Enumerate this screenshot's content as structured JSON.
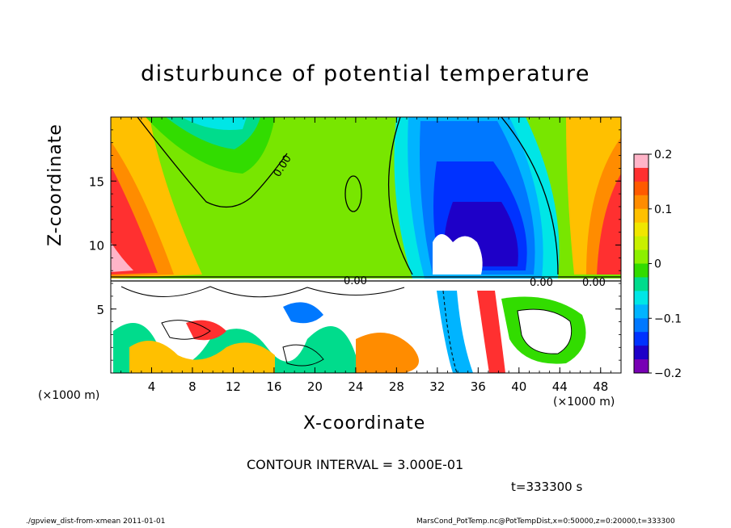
{
  "chart_data": {
    "type": "heatmap",
    "title": "disturbunce of potential temperature",
    "xlabel": "X-coordinate",
    "ylabel": "Z-coordinate",
    "x_unit_left": "(×1000 m)",
    "x_unit_right": "(×1000 m)",
    "xlim": [
      0,
      50
    ],
    "ylim": [
      0,
      20
    ],
    "x_ticks": [
      4,
      8,
      12,
      16,
      20,
      24,
      28,
      32,
      36,
      40,
      44,
      48
    ],
    "x_tick_labels": [
      "4",
      "8",
      "12",
      "16",
      "20",
      "24",
      "28",
      "32",
      "36",
      "40",
      "44",
      "48"
    ],
    "y_ticks": [
      5,
      10,
      15
    ],
    "y_tick_labels": [
      "5",
      "10",
      "15"
    ],
    "colorbar": {
      "range": [
        -0.2,
        0.2
      ],
      "ticks": [
        0.2,
        0.1,
        0,
        -0.1,
        -0.2
      ],
      "tick_labels": [
        "0.2",
        "0.1",
        "0",
        "−0.1",
        "−0.2"
      ],
      "colors": [
        "#ffb4c8",
        "#ff3030",
        "#ff5a00",
        "#ff8c00",
        "#ffc000",
        "#f0e600",
        "#c8f000",
        "#8cf000",
        "#32dc00",
        "#00dc8c",
        "#00e6e6",
        "#00b4ff",
        "#0078ff",
        "#0032ff",
        "#1e00c8",
        "#7800b4"
      ]
    },
    "contour_labels": [
      "0.00",
      "0.00",
      "0.00",
      "0.00"
    ],
    "contour_interval": "CONTOUR INTERVAL = 3.000E-01",
    "time": "t=333300 s",
    "grid": false
  },
  "footer": {
    "left": "./gpview_dist-from-xmean  2011-01-01",
    "right": "MarsCond_PotTemp.nc@PotTempDist,x=0:50000,z=0:20000,t=333300"
  }
}
